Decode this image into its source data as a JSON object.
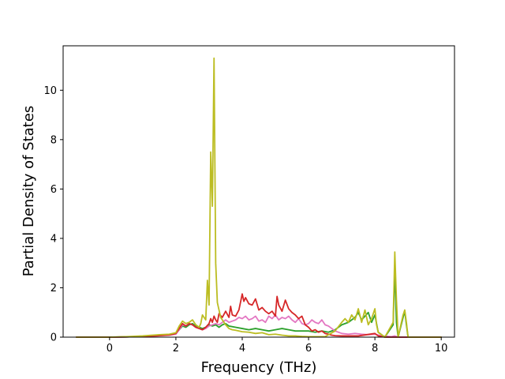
{
  "chart_data": {
    "type": "line",
    "title": "",
    "xlabel": "Frequency (THz)",
    "ylabel": "Partial Density of States",
    "xlim": [
      -1.4,
      10.4
    ],
    "ylim": [
      0,
      11.8
    ],
    "xticks": [
      0,
      2,
      4,
      6,
      8,
      10
    ],
    "yticks": [
      0,
      2,
      4,
      6,
      8,
      10
    ],
    "grid": false,
    "legend": "none",
    "series": [
      {
        "color": "#2ca02c",
        "points": [
          [
            -1,
            0
          ],
          [
            0,
            0
          ],
          [
            0.5,
            0.01
          ],
          [
            1,
            0.03
          ],
          [
            1.5,
            0.07
          ],
          [
            1.8,
            0.1
          ],
          [
            2,
            0.15
          ],
          [
            2.1,
            0.3
          ],
          [
            2.2,
            0.45
          ],
          [
            2.3,
            0.4
          ],
          [
            2.4,
            0.5
          ],
          [
            2.5,
            0.55
          ],
          [
            2.6,
            0.45
          ],
          [
            2.7,
            0.4
          ],
          [
            2.8,
            0.35
          ],
          [
            2.9,
            0.4
          ],
          [
            3,
            0.5
          ],
          [
            3.1,
            0.45
          ],
          [
            3.2,
            0.5
          ],
          [
            3.3,
            0.4
          ],
          [
            3.4,
            0.5
          ],
          [
            3.5,
            0.55
          ],
          [
            3.6,
            0.45
          ],
          [
            3.8,
            0.4
          ],
          [
            4,
            0.35
          ],
          [
            4.2,
            0.3
          ],
          [
            4.4,
            0.35
          ],
          [
            4.6,
            0.3
          ],
          [
            4.8,
            0.25
          ],
          [
            5,
            0.3
          ],
          [
            5.2,
            0.35
          ],
          [
            5.4,
            0.3
          ],
          [
            5.6,
            0.25
          ],
          [
            5.8,
            0.25
          ],
          [
            6,
            0.25
          ],
          [
            6.2,
            0.2
          ],
          [
            6.4,
            0.25
          ],
          [
            6.6,
            0.2
          ],
          [
            6.8,
            0.3
          ],
          [
            7,
            0.5
          ],
          [
            7.2,
            0.6
          ],
          [
            7.4,
            0.8
          ],
          [
            7.5,
            1.0
          ],
          [
            7.6,
            0.7
          ],
          [
            7.8,
            1.0
          ],
          [
            7.9,
            0.6
          ],
          [
            8,
            0.9
          ],
          [
            8.1,
            0.2
          ],
          [
            8.3,
            0
          ],
          [
            8.55,
            0.5
          ],
          [
            8.6,
            2.8
          ],
          [
            8.65,
            0.6
          ],
          [
            8.7,
            0
          ],
          [
            8.85,
            0.8
          ],
          [
            8.9,
            1.05
          ],
          [
            8.95,
            0.5
          ],
          [
            9,
            0
          ],
          [
            10,
            0
          ]
        ]
      },
      {
        "color": "#e377c2",
        "points": [
          [
            -1,
            0
          ],
          [
            0,
            0
          ],
          [
            0.5,
            0.01
          ],
          [
            1,
            0.03
          ],
          [
            1.5,
            0.06
          ],
          [
            1.8,
            0.08
          ],
          [
            2,
            0.12
          ],
          [
            2.1,
            0.3
          ],
          [
            2.2,
            0.5
          ],
          [
            2.3,
            0.45
          ],
          [
            2.4,
            0.55
          ],
          [
            2.5,
            0.5
          ],
          [
            2.6,
            0.4
          ],
          [
            2.7,
            0.35
          ],
          [
            2.8,
            0.3
          ],
          [
            2.9,
            0.35
          ],
          [
            3,
            0.45
          ],
          [
            3.1,
            0.5
          ],
          [
            3.2,
            0.55
          ],
          [
            3.3,
            0.5
          ],
          [
            3.4,
            0.6
          ],
          [
            3.5,
            0.7
          ],
          [
            3.6,
            0.6
          ],
          [
            3.7,
            0.65
          ],
          [
            3.8,
            0.7
          ],
          [
            3.9,
            0.8
          ],
          [
            4,
            0.75
          ],
          [
            4.1,
            0.85
          ],
          [
            4.2,
            0.7
          ],
          [
            4.3,
            0.75
          ],
          [
            4.4,
            0.85
          ],
          [
            4.5,
            0.65
          ],
          [
            4.6,
            0.7
          ],
          [
            4.7,
            0.6
          ],
          [
            4.8,
            0.85
          ],
          [
            4.9,
            0.75
          ],
          [
            5,
            0.9
          ],
          [
            5.1,
            0.7
          ],
          [
            5.2,
            0.8
          ],
          [
            5.3,
            0.75
          ],
          [
            5.4,
            0.85
          ],
          [
            5.5,
            0.7
          ],
          [
            5.6,
            0.6
          ],
          [
            5.7,
            0.75
          ],
          [
            5.8,
            0.55
          ],
          [
            5.9,
            0.5
          ],
          [
            6,
            0.55
          ],
          [
            6.1,
            0.7
          ],
          [
            6.2,
            0.6
          ],
          [
            6.3,
            0.55
          ],
          [
            6.4,
            0.7
          ],
          [
            6.5,
            0.5
          ],
          [
            6.6,
            0.45
          ],
          [
            6.7,
            0.35
          ],
          [
            6.8,
            0.25
          ],
          [
            6.9,
            0.2
          ],
          [
            7,
            0.15
          ],
          [
            7.2,
            0.12
          ],
          [
            7.4,
            0.15
          ],
          [
            7.6,
            0.12
          ],
          [
            7.8,
            0.1
          ],
          [
            8,
            0.12
          ],
          [
            8.2,
            0.05
          ],
          [
            8.5,
            0.02
          ],
          [
            8.6,
            0.05
          ],
          [
            8.7,
            0
          ],
          [
            10,
            0
          ]
        ]
      },
      {
        "color": "#d62728",
        "points": [
          [
            -1,
            0
          ],
          [
            0,
            0
          ],
          [
            0.5,
            0.01
          ],
          [
            1,
            0.03
          ],
          [
            1.5,
            0.06
          ],
          [
            1.8,
            0.09
          ],
          [
            2,
            0.15
          ],
          [
            2.1,
            0.35
          ],
          [
            2.2,
            0.55
          ],
          [
            2.3,
            0.45
          ],
          [
            2.4,
            0.55
          ],
          [
            2.5,
            0.5
          ],
          [
            2.6,
            0.4
          ],
          [
            2.7,
            0.35
          ],
          [
            2.8,
            0.3
          ],
          [
            2.9,
            0.4
          ],
          [
            3,
            0.55
          ],
          [
            3.05,
            0.75
          ],
          [
            3.1,
            0.6
          ],
          [
            3.15,
            0.85
          ],
          [
            3.2,
            0.7
          ],
          [
            3.25,
            0.6
          ],
          [
            3.3,
            0.95
          ],
          [
            3.4,
            0.8
          ],
          [
            3.5,
            1.05
          ],
          [
            3.6,
            0.8
          ],
          [
            3.65,
            1.25
          ],
          [
            3.7,
            0.9
          ],
          [
            3.8,
            0.85
          ],
          [
            3.9,
            1.1
          ],
          [
            4,
            1.75
          ],
          [
            4.05,
            1.45
          ],
          [
            4.1,
            1.6
          ],
          [
            4.2,
            1.35
          ],
          [
            4.3,
            1.3
          ],
          [
            4.4,
            1.55
          ],
          [
            4.5,
            1.1
          ],
          [
            4.6,
            1.2
          ],
          [
            4.7,
            1.05
          ],
          [
            4.8,
            0.95
          ],
          [
            4.9,
            1.05
          ],
          [
            5,
            0.85
          ],
          [
            5.05,
            1.65
          ],
          [
            5.1,
            1.3
          ],
          [
            5.2,
            1.05
          ],
          [
            5.3,
            1.5
          ],
          [
            5.4,
            1.15
          ],
          [
            5.5,
            1.0
          ],
          [
            5.6,
            0.9
          ],
          [
            5.7,
            0.75
          ],
          [
            5.8,
            0.85
          ],
          [
            5.9,
            0.5
          ],
          [
            6,
            0.4
          ],
          [
            6.1,
            0.25
          ],
          [
            6.2,
            0.3
          ],
          [
            6.3,
            0.2
          ],
          [
            6.4,
            0.25
          ],
          [
            6.5,
            0.15
          ],
          [
            6.6,
            0.12
          ],
          [
            6.7,
            0.08
          ],
          [
            6.8,
            0.06
          ],
          [
            7,
            0.05
          ],
          [
            7.5,
            0.05
          ],
          [
            8,
            0.15
          ],
          [
            8.1,
            0.05
          ],
          [
            8.3,
            0
          ],
          [
            10,
            0
          ]
        ]
      },
      {
        "color": "#bcbd22",
        "points": [
          [
            -1,
            0
          ],
          [
            0,
            0
          ],
          [
            0.5,
            0.02
          ],
          [
            1,
            0.05
          ],
          [
            1.5,
            0.1
          ],
          [
            1.8,
            0.12
          ],
          [
            2,
            0.18
          ],
          [
            2.1,
            0.45
          ],
          [
            2.2,
            0.65
          ],
          [
            2.3,
            0.55
          ],
          [
            2.4,
            0.6
          ],
          [
            2.5,
            0.7
          ],
          [
            2.6,
            0.5
          ],
          [
            2.7,
            0.4
          ],
          [
            2.75,
            0.55
          ],
          [
            2.8,
            0.9
          ],
          [
            2.9,
            0.7
          ],
          [
            2.95,
            2.3
          ],
          [
            3.0,
            1.3
          ],
          [
            3.05,
            7.5
          ],
          [
            3.1,
            5.3
          ],
          [
            3.15,
            11.3
          ],
          [
            3.2,
            3.0
          ],
          [
            3.25,
            1.4
          ],
          [
            3.3,
            1.1
          ],
          [
            3.35,
            0.8
          ],
          [
            3.4,
            0.7
          ],
          [
            3.5,
            0.5
          ],
          [
            3.6,
            0.35
          ],
          [
            3.7,
            0.3
          ],
          [
            3.8,
            0.28
          ],
          [
            4,
            0.22
          ],
          [
            4.2,
            0.2
          ],
          [
            4.4,
            0.15
          ],
          [
            4.6,
            0.18
          ],
          [
            4.8,
            0.1
          ],
          [
            5,
            0.12
          ],
          [
            5.2,
            0.08
          ],
          [
            5.4,
            0.05
          ],
          [
            5.6,
            0.05
          ],
          [
            5.8,
            0.03
          ],
          [
            6,
            0.02
          ],
          [
            6.5,
            0.02
          ],
          [
            6.8,
            0.25
          ],
          [
            7,
            0.6
          ],
          [
            7.1,
            0.75
          ],
          [
            7.2,
            0.6
          ],
          [
            7.3,
            0.9
          ],
          [
            7.4,
            0.7
          ],
          [
            7.5,
            1.15
          ],
          [
            7.6,
            0.6
          ],
          [
            7.7,
            1.1
          ],
          [
            7.8,
            0.5
          ],
          [
            7.9,
            0.75
          ],
          [
            8,
            1.15
          ],
          [
            8.05,
            0.5
          ],
          [
            8.1,
            0.2
          ],
          [
            8.3,
            0
          ],
          [
            8.55,
            0.6
          ],
          [
            8.6,
            3.45
          ],
          [
            8.65,
            1.5
          ],
          [
            8.7,
            0
          ],
          [
            8.85,
            0.9
          ],
          [
            8.9,
            1.1
          ],
          [
            8.95,
            0.6
          ],
          [
            9,
            0
          ],
          [
            10,
            0
          ]
        ]
      }
    ]
  }
}
